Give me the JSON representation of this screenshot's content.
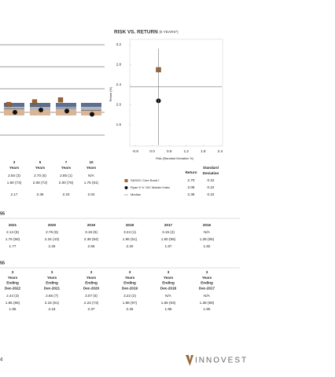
{
  "left_table": {
    "headers": [
      [
        "3",
        "Years"
      ],
      [
        "5",
        "Years"
      ],
      [
        "7",
        "Years"
      ],
      [
        "10",
        "Years"
      ]
    ],
    "rows": [
      [
        {
          "value": 2.5,
          "label": "2.50 (3)"
        },
        {
          "value": 2.7,
          "label": "2.70 (5)"
        },
        {
          "value": 2.85,
          "label": "2.85 (1)"
        },
        {
          "label": "N/A"
        }
      ],
      [
        {
          "value": 1.9,
          "label": "1.90 (73)"
        },
        {
          "value": 2.08,
          "label": "2.08 (72)"
        },
        {
          "value": 2.0,
          "label": "2.00 (76)"
        },
        {
          "value": 1.75,
          "label": "1.75 (91)"
        }
      ],
      [
        {
          "value": 2.17,
          "label": "2.17"
        },
        {
          "value": 2.36,
          "label": "2.36"
        },
        {
          "value": 2.23,
          "label": "2.23"
        },
        {
          "value": 2.04,
          "label": "2.04"
        }
      ]
    ]
  },
  "risk_return": {
    "title": "RISK VS. RETURN",
    "title_note": "(5 YEARS*)",
    "y_label": "Return (%)",
    "x_label": "Risk (Standard Deviation %)",
    "ylim": [
      1.2,
      3.2
    ],
    "yticks": [
      1.6,
      {
        "value": 2,
        "label": "2.0"
      },
      2.4,
      2.8,
      3.2
    ],
    "xlim": [
      -0.6,
      2.4
    ],
    "xticks": [
      -0.6,
      {
        "value": 0,
        "label": "0.0"
      },
      0.6,
      1.2,
      1.8,
      2.4
    ],
    "legend": {
      "headers": [
        "Return",
        [
          "Standard",
          "Deviation"
        ]
      ],
      "rows": [
        {
          "name": "SASGC Core Bond I",
          "marker": "square",
          "color": "#a0622d",
          "return": 2.7,
          "return_label": "2.70",
          "std": 0.22,
          "std_label": "0.22"
        },
        {
          "name": "Ryan 5 Yr GIC Master Index",
          "marker": "circle",
          "color": "#111111",
          "return": 2.08,
          "return_label": "2.08",
          "std": 0.22,
          "std_label": "0.22"
        },
        {
          "name": "Median",
          "marker": "line",
          "color": "#777777",
          "return": 2.36,
          "return_label": "2.36",
          "std": 0.22,
          "std_label": "0.22"
        }
      ]
    }
  },
  "sections": [
    {
      "label": "55",
      "headers": [
        [
          "2021"
        ],
        [
          "2020"
        ],
        [
          "2019"
        ],
        [
          "2018"
        ],
        [
          "2017"
        ],
        [
          "2016"
        ]
      ],
      "rows": [
        [
          "2.14 (6)",
          "2.76 (6)",
          "3.19 (6)",
          "3.24 (1)",
          "3.15 (2)",
          "N/A"
        ],
        [
          "1.76 (56)",
          "2.34 (43)",
          "2.38 (84)",
          "1.96 (51)",
          "1.60 (95)",
          "1.39 (95)"
        ],
        [
          "1.77",
          "2.25",
          "2.55",
          "2.20",
          "1.87",
          "1.82"
        ]
      ]
    },
    {
      "label": "55",
      "headers": [
        [
          "3",
          "Years",
          "Ending",
          "Dec-2022"
        ],
        [
          "3",
          "Years",
          "Ending",
          "Dec-2021"
        ],
        [
          "3",
          "Years",
          "Ending",
          "Dec-2020"
        ],
        [
          "3",
          "Years",
          "Ending",
          "Dec-2019"
        ],
        [
          "3",
          "Years",
          "Ending",
          "Dec-2018"
        ],
        [
          "3",
          "Years",
          "Ending",
          "Dec-2017"
        ]
      ],
      "rows": [
        [
          "2.44 (3)",
          "2.66 (7)",
          "3.07 (5)",
          "3.22 (2)",
          "N/A",
          "N/A"
        ],
        [
          "1.85 (86)",
          "2.16 (51)",
          "2.23 (73)",
          "1.98 (97)",
          "1.65 (93)",
          "1.38 (89)"
        ],
        [
          "1.95",
          "2.16",
          "2.37",
          "2.25",
          "1.95",
          "1.80"
        ]
      ]
    }
  ],
  "footer": {
    "page_number": "4",
    "logo": "INNOVEST"
  }
}
